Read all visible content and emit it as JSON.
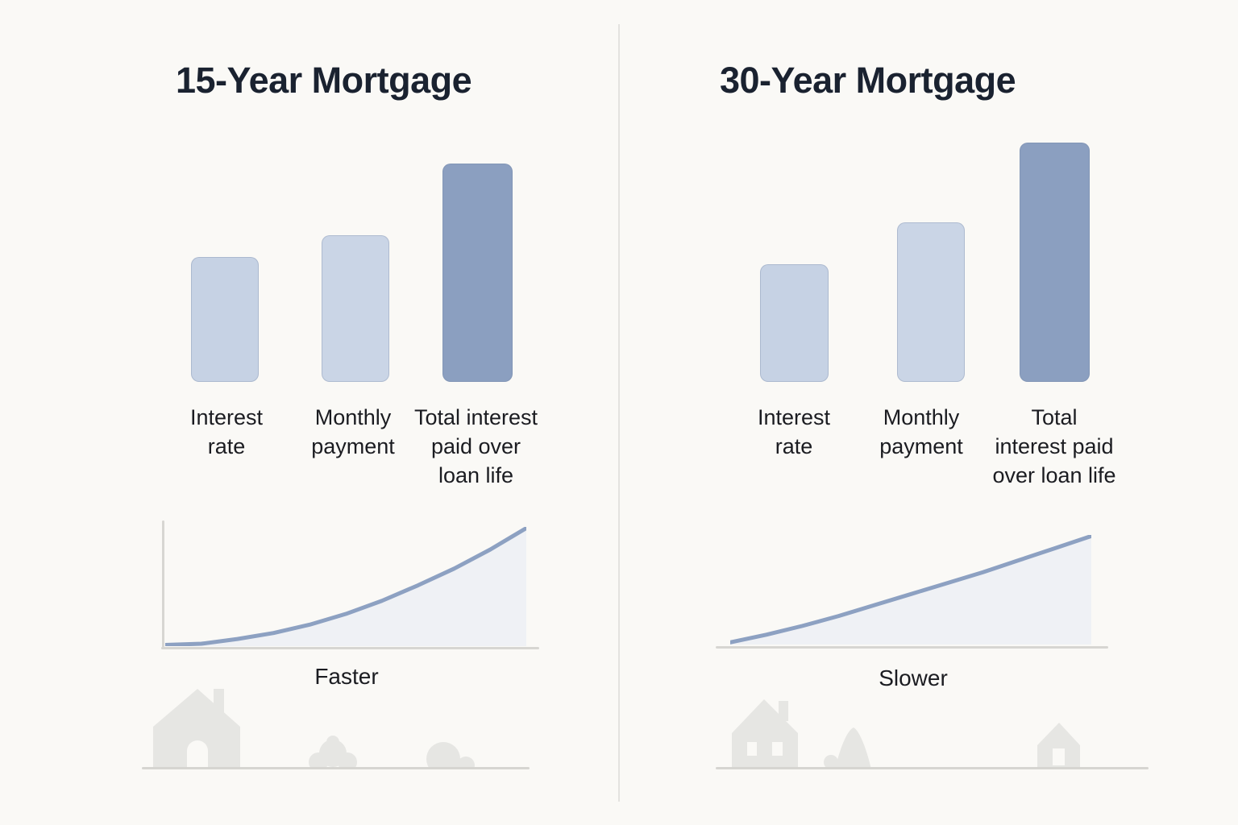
{
  "page": {
    "background": "#faf9f6",
    "divider_color": "#e4e3e0",
    "title_color": "#1a2230",
    "label_color": "#1b1c21",
    "axis_color": "#d7d6d2",
    "silhouette_color": "#e6e6e3"
  },
  "panels": [
    {
      "title": "15-Year Mortgage",
      "bar_labels": [
        [
          "Interest",
          "rate"
        ],
        [
          "Monthly",
          "payment"
        ],
        [
          "Total interest",
          "paid over",
          "loan life"
        ]
      ],
      "trend_caption": "Faster"
    },
    {
      "title": "30-Year Mortgage",
      "bar_labels": [
        [
          "Interest",
          "rate"
        ],
        [
          "Monthly",
          "payment"
        ],
        [
          "Total",
          "interest paid",
          "over loan life"
        ]
      ],
      "trend_caption": "Slower"
    }
  ],
  "chart_data": [
    {
      "type": "bar",
      "title": "15-Year Mortgage",
      "categories": [
        "Interest rate",
        "Monthly payment",
        "Total interest paid over loan life"
      ],
      "values": [
        155,
        182,
        271
      ],
      "value_units": "relative bar height in px (no numeric axis shown)",
      "bar_colors": [
        "#c6d2e4",
        "#cad5e6",
        "#8b9fc0"
      ],
      "legend": "none",
      "grid": false,
      "trend": {
        "type": "area",
        "label": "Faster",
        "shape": "accelerating convex growth curve (equity builds faster)",
        "line_color": "#8fa0be",
        "stroke_color": "#8da1c2",
        "fill_color": "#eff1f5",
        "points_pct": [
          [
            0,
            1
          ],
          [
            10,
            2
          ],
          [
            20,
            6
          ],
          [
            30,
            11
          ],
          [
            40,
            18
          ],
          [
            50,
            27
          ],
          [
            60,
            38
          ],
          [
            70,
            51
          ],
          [
            80,
            65
          ],
          [
            90,
            81
          ],
          [
            100,
            99
          ]
        ]
      }
    },
    {
      "type": "bar",
      "title": "30-Year Mortgage",
      "categories": [
        "Interest rate",
        "Monthly payment",
        "Total interest paid over loan life"
      ],
      "values": [
        146,
        198,
        297
      ],
      "value_units": "relative bar height in px (no numeric axis shown)",
      "bar_colors": [
        "#c6d2e4",
        "#cad5e6",
        "#8b9fc0"
      ],
      "legend": "none",
      "grid": false,
      "trend": {
        "type": "area",
        "label": "Slower",
        "shape": "near-linear slow growth curve",
        "stroke_color": "#8da1c2",
        "fill_color": "#eff1f5",
        "points_pct": [
          [
            0,
            2
          ],
          [
            10,
            9
          ],
          [
            20,
            17
          ],
          [
            30,
            26
          ],
          [
            40,
            36
          ],
          [
            50,
            46
          ],
          [
            60,
            56
          ],
          [
            70,
            66
          ],
          [
            80,
            77
          ],
          [
            90,
            88
          ],
          [
            100,
            99
          ]
        ]
      }
    }
  ]
}
